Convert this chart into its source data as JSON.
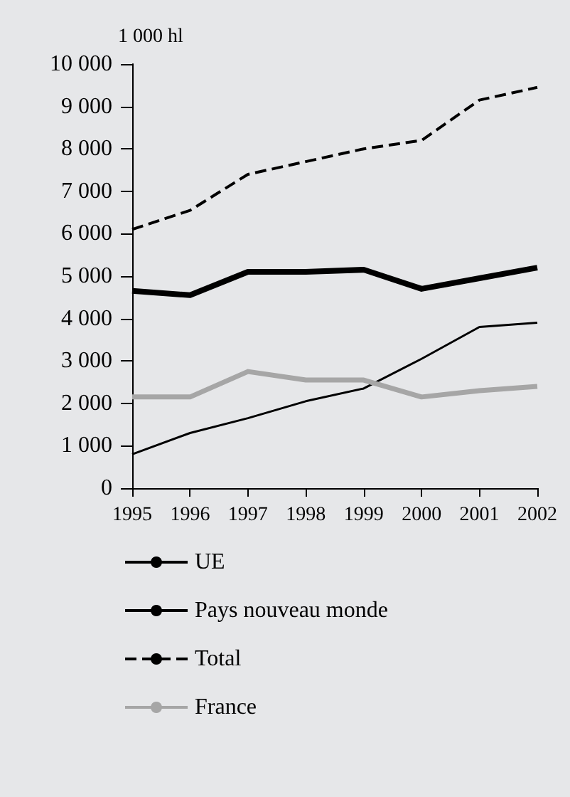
{
  "chart_data": {
    "type": "line",
    "ylabel": "1 000 hl",
    "x": [
      1995,
      1996,
      1997,
      1998,
      1999,
      2000,
      2001,
      2002
    ],
    "xlim": [
      1995,
      2002
    ],
    "xticks": [
      1995,
      1996,
      1997,
      1998,
      1999,
      2000,
      2001,
      2002
    ],
    "ylim": [
      0,
      10000
    ],
    "yticks": [
      0,
      {
        "value": 1000,
        "label": "1 000"
      },
      {
        "value": 2000,
        "label": "2 000"
      },
      {
        "value": 3000,
        "label": "3 000"
      },
      {
        "value": 4000,
        "label": "4 000"
      },
      {
        "value": 5000,
        "label": "5 000"
      },
      {
        "value": 6000,
        "label": "6 000"
      },
      {
        "value": 7000,
        "label": "7 000"
      },
      {
        "value": 8000,
        "label": "8 000"
      },
      {
        "value": 9000,
        "label": "9 000"
      },
      {
        "value": 10000,
        "label": "10 000"
      }
    ],
    "series": [
      {
        "name": "UE",
        "color": "#000000",
        "values": [
          4650,
          4550,
          5100,
          5100,
          5150,
          4700,
          4950,
          5200
        ]
      },
      {
        "name": "Pays nouveau monde",
        "color": "#000000",
        "values": [
          800,
          1300,
          1650,
          2050,
          2350,
          3050,
          3800,
          3900
        ]
      },
      {
        "name": "Total",
        "color": "#000000",
        "line_style": "dashed",
        "values": [
          6100,
          6550,
          7400,
          7700,
          8000,
          8200,
          9150,
          9450
        ]
      },
      {
        "name": "France",
        "color": "#a6a6a6",
        "values": [
          2150,
          2150,
          2750,
          2550,
          2550,
          2150,
          2300,
          2400
        ]
      }
    ],
    "grid": false,
    "legend": "bottom",
    "marker": "none"
  }
}
